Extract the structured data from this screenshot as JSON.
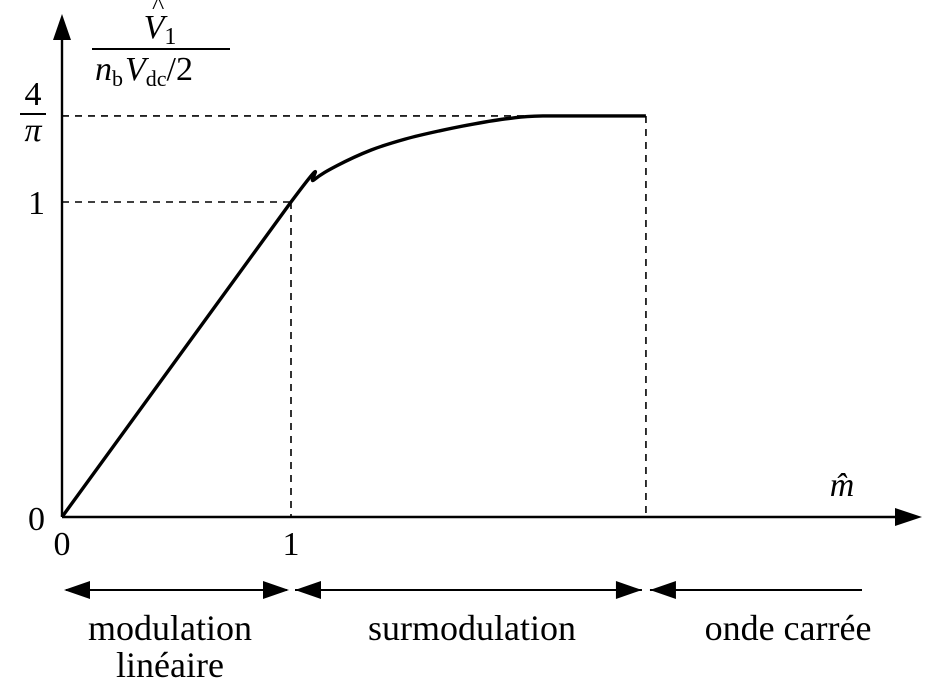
{
  "chart_data": {
    "type": "line",
    "xlabel": "m̂",
    "ylabel": {
      "numerator": "V̂1",
      "denominator": "nb Vdc/2",
      "parts": {
        "V": "V",
        "hat": "^",
        "sub1": "1",
        "n": "n",
        "b": "b",
        "Vd": "V",
        "dc": "dc",
        "tail": "/2"
      }
    },
    "x_ticks": [
      "0",
      "1"
    ],
    "y_ticks": [
      {
        "label": "0",
        "value": 0
      },
      {
        "label": "1",
        "value": 1
      },
      {
        "label_num": "4",
        "label_den": "π",
        "value": 1.2732
      }
    ],
    "xlim": [
      0,
      2.75
    ],
    "ylim": [
      0,
      1.38
    ],
    "series": [
      {
        "x": [
          0,
          1,
          1.1,
          1.2,
          1.35,
          1.5,
          1.65,
          1.8,
          1.95,
          2.1,
          2.55
        ],
        "y": [
          0,
          1,
          1.07,
          1.115,
          1.165,
          1.2,
          1.226,
          1.248,
          1.265,
          1.2732,
          1.2732
        ]
      }
    ],
    "reference_x": [
      1,
      2.55
    ],
    "square_wave_start": 2.55,
    "regions": [
      {
        "line1": "modulation",
        "line2": "linéaire",
        "from": 0,
        "to": 1
      },
      {
        "line1": "surmodulation",
        "line2": "",
        "from": 1,
        "to": 2.55
      },
      {
        "line1": "onde carrée",
        "line2": "",
        "from": 2.55,
        "to": 3.5
      }
    ]
  }
}
